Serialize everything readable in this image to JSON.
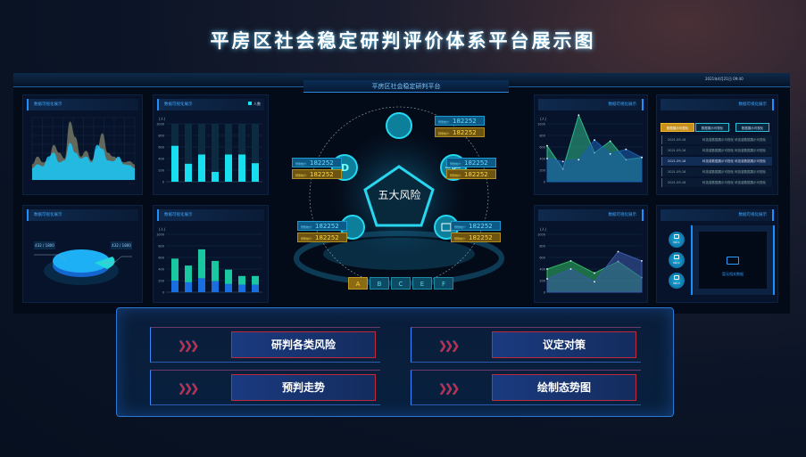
{
  "title": "平房区社会稳定研判评价体系平台展示图",
  "platform": {
    "subtitle": "平房区社会稳定研判平台",
    "clock": "2021年4月21日 09:40"
  },
  "colors": {
    "accent": "#1e8fff",
    "cyan": "#17e5f0",
    "gold": "#ffd23c",
    "green": "#2fd69a"
  },
  "panels": {
    "wave": {
      "title": "数据可视化展示"
    },
    "bars": {
      "title": "数据可视化展示",
      "legend": "人数",
      "unit": "(人)"
    },
    "pie": {
      "title": "数据可视化展示",
      "label_left": "432 / 1800",
      "label_right": "432 / 1800"
    },
    "stacked": {
      "title": "数据可视化展示",
      "unit": "(人)"
    },
    "area": {
      "title": "数据可视化展示",
      "unit": "(人)"
    },
    "table": {
      "title": "数据可视化展示",
      "tabs": [
        "数据展示可视化",
        "数据展示可视化",
        "数据展示可视化"
      ],
      "rows": [
        {
          "date": "2021-09-18",
          "text": "科技感数据展示可视化 科技感数据展示可视化"
        },
        {
          "date": "2021-09-18",
          "text": "科技感数据展示可视化 科技感数据展示可视化"
        },
        {
          "date": "2021-09-18",
          "text": "科技感数据展示可视化 科技感数据展示可视化"
        },
        {
          "date": "2021-09-18",
          "text": "科技感数据展示可视化 科技感数据展示可视化"
        },
        {
          "date": "2021-09-18",
          "text": "科技感数据展示可视化 科技感数据展示可视化"
        }
      ]
    },
    "line": {
      "title": "数据可视化展示",
      "unit": "(人)"
    },
    "media": {
      "title": "数据可视化展示",
      "items": [
        "NO.1",
        "NO.2",
        "NO.3"
      ],
      "empty": "暂无相关数据"
    }
  },
  "center": {
    "title": "五大风险",
    "tag_label": "预警统计:",
    "tag_value": "182252",
    "letters": [
      "A",
      "B",
      "C",
      "E",
      "F"
    ],
    "active_letter": "A"
  },
  "actions": [
    "研判各类风险",
    "议定对策",
    "预判走势",
    "绘制态势图"
  ],
  "chart_data": [
    {
      "type": "area",
      "id": "wave",
      "series": [
        {
          "values": [
            40,
            60,
            45,
            50,
            90,
            70,
            55,
            150,
            110,
            60,
            75,
            50,
            80,
            120,
            70,
            60,
            55,
            45,
            48,
            40
          ]
        },
        {
          "values": [
            30,
            40,
            35,
            60,
            70,
            45,
            50,
            95,
            70,
            55,
            60,
            45,
            90,
            80,
            50,
            48,
            60,
            40,
            38,
            30
          ]
        }
      ],
      "ylim": [
        0,
        160
      ]
    },
    {
      "type": "bar",
      "id": "bars",
      "categories": [
        "1",
        "2",
        "3",
        "4",
        "5",
        "6",
        "7"
      ],
      "values": [
        620,
        310,
        470,
        170,
        470,
        470,
        320
      ],
      "ylim": [
        0,
        1000
      ],
      "yticks": [
        0,
        200,
        400,
        600,
        800,
        1000
      ]
    },
    {
      "type": "pie",
      "id": "pie",
      "values": [
        1368,
        432
      ]
    },
    {
      "type": "bar",
      "id": "stacked",
      "stacked": true,
      "series": [
        {
          "values": [
            200,
            170,
            240,
            190,
            140,
            130,
            130
          ]
        },
        {
          "values": [
            380,
            290,
            500,
            350,
            250,
            150,
            150
          ]
        }
      ],
      "ylim": [
        0,
        1000
      ],
      "yticks": [
        0,
        200,
        400,
        600,
        800,
        1000
      ]
    },
    {
      "type": "area",
      "id": "area",
      "series": [
        {
          "values": [
            620,
            220,
            1150,
            500,
            700,
            380,
            420
          ]
        },
        {
          "values": [
            400,
            350,
            380,
            720,
            480,
            560,
            420
          ]
        }
      ],
      "ylim": [
        0,
        1000
      ],
      "yticks": [
        0,
        200,
        400,
        600,
        800,
        1000
      ]
    },
    {
      "type": "area",
      "id": "line",
      "series": [
        {
          "values": [
            400,
            540,
            330,
            530,
            250
          ]
        },
        {
          "values": [
            230,
            400,
            180,
            700,
            540
          ]
        }
      ],
      "ylim": [
        0,
        1000
      ],
      "yticks": [
        0,
        200,
        400,
        600,
        800,
        1000
      ]
    }
  ]
}
